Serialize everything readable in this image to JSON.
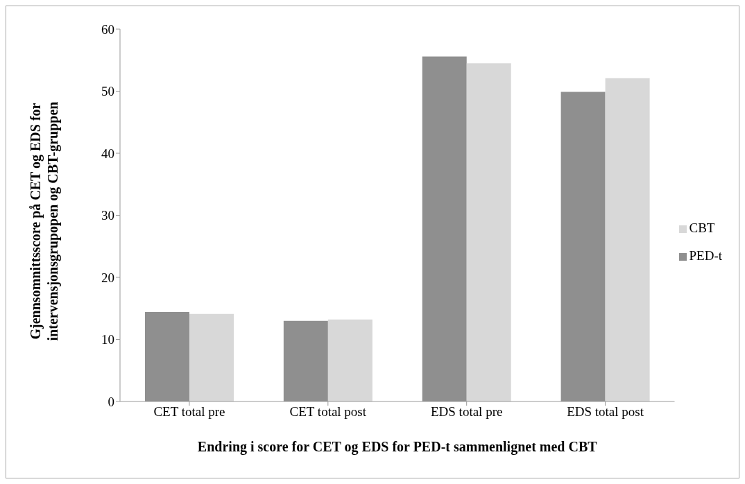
{
  "chart_data": {
    "type": "bar",
    "xlabel": "Endring i score for CET og EDS for PED-t sammenlignet med CBT",
    "ylabel": "Gjennsomnittsscore på CET og EDS for intervensjonsgrupopen og CBT-gruppen",
    "categories": [
      "CET total pre",
      "CET total post",
      "EDS total pre",
      "EDS total post"
    ],
    "series": [
      {
        "name": "PED-t",
        "color": "#8f8f8f",
        "values": [
          14.4,
          13.0,
          55.6,
          49.9
        ]
      },
      {
        "name": "CBT",
        "color": "#d8d8d8",
        "values": [
          14.1,
          13.2,
          54.5,
          52.1
        ]
      }
    ],
    "ylim": [
      0,
      60
    ],
    "yticks": [
      0,
      10,
      20,
      30,
      40,
      50,
      60
    ],
    "grid": false,
    "legend": "right"
  }
}
